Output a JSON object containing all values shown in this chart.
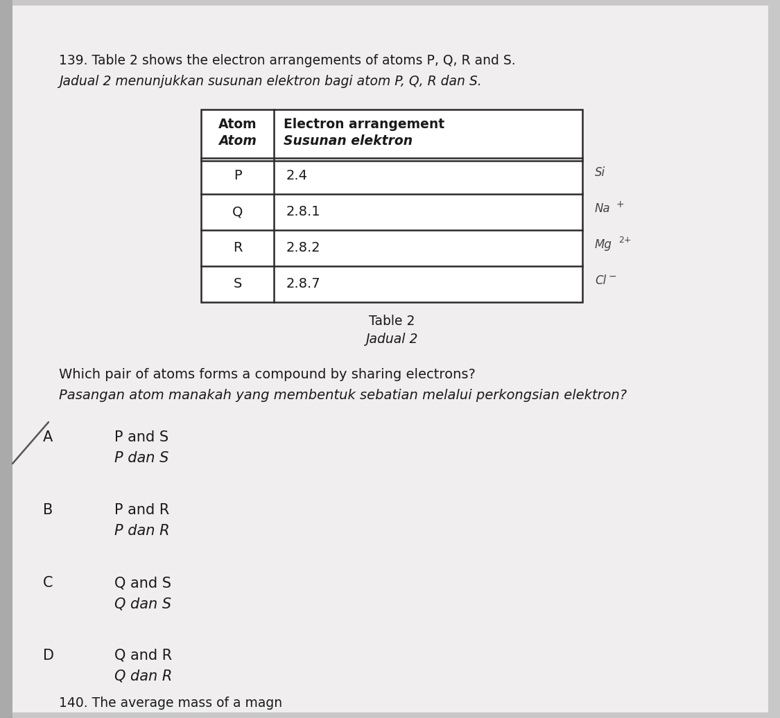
{
  "background_color": "#c8c8c8",
  "page_bg": "#f0eeee",
  "question_number": "139.",
  "question_line1": "Table 2 shows the electron arrangements of atoms P, Q, R and S.",
  "question_line1_italic": "Jadual 2 menunjukkan susunan elektron bagi atom P, Q, R dan S.",
  "table_header_col1_line1": "Atom",
  "table_header_col1_line2": "Atom",
  "table_header_col2_line1": "Electron arrangement",
  "table_header_col2_line2": "Susunan elektron",
  "table_rows": [
    [
      "P",
      "2.4"
    ],
    [
      "Q",
      "2.8.1"
    ],
    [
      "R",
      "2.8.2"
    ],
    [
      "S",
      "2.8.7"
    ]
  ],
  "table_caption_line1": "Table 2",
  "table_caption_line2": "Jadual 2",
  "question2_line1": "Which pair of atoms forms a compound by sharing electrons?",
  "question2_line2": "Pasangan atom manakah yang membentuk sebatian melalui perkongsian elektron?",
  "options": [
    {
      "letter": "A",
      "line1": "P and S",
      "line2": "P dan S",
      "slashed": true
    },
    {
      "letter": "B",
      "line1": "P and R",
      "line2": "P dan R",
      "slashed": false
    },
    {
      "letter": "C",
      "line1": "Q and S",
      "line2": "Q dan S",
      "slashed": false
    },
    {
      "letter": "D",
      "line1": "Q and R",
      "line2": "Q dan R",
      "slashed": false
    }
  ],
  "footer_text": "140. The average mass of a magn",
  "text_color": "#1a1a1a",
  "table_border_color": "#2a2a2a",
  "note_color": "#444444",
  "slash_color": "#555555"
}
